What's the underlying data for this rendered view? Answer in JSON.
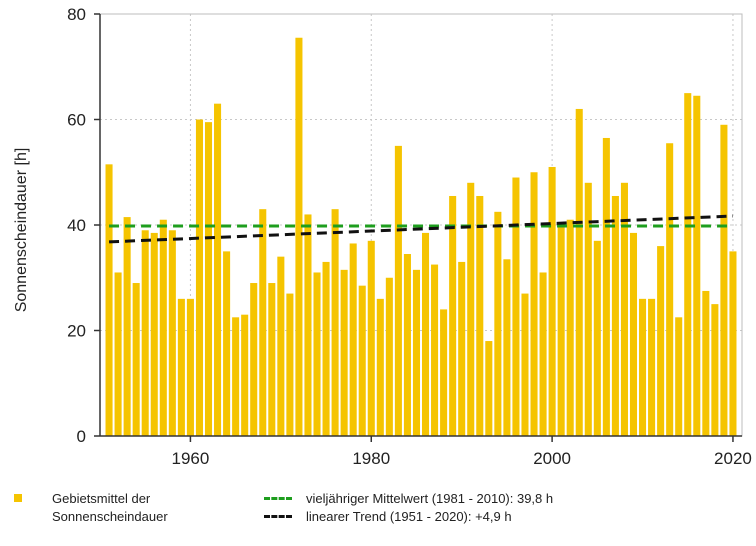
{
  "chart_data": {
    "type": "bar",
    "title": "",
    "xlabel": "",
    "ylabel": "Sonnenscheindauer [h]",
    "xlim": [
      1950,
      2021
    ],
    "ylim": [
      0,
      80
    ],
    "x_ticks": [
      "1960",
      "1980",
      "2000",
      "2020"
    ],
    "y_ticks": [
      "0",
      "20",
      "40",
      "60",
      "80"
    ],
    "grid": true,
    "x": [
      1951,
      1952,
      1953,
      1954,
      1955,
      1956,
      1957,
      1958,
      1959,
      1960,
      1961,
      1962,
      1963,
      1964,
      1965,
      1966,
      1967,
      1968,
      1969,
      1970,
      1971,
      1972,
      1973,
      1974,
      1975,
      1976,
      1977,
      1978,
      1979,
      1980,
      1981,
      1982,
      1983,
      1984,
      1985,
      1986,
      1987,
      1988,
      1989,
      1990,
      1991,
      1992,
      1993,
      1994,
      1995,
      1996,
      1997,
      1998,
      1999,
      2000,
      2001,
      2002,
      2003,
      2004,
      2005,
      2006,
      2007,
      2008,
      2009,
      2010,
      2011,
      2012,
      2013,
      2014,
      2015,
      2016,
      2017,
      2018,
      2019,
      2020
    ],
    "series": [
      {
        "name": "Gebietsmittel der Sonnenscheindauer",
        "color": "#f5c400",
        "values": [
          51.5,
          31,
          41.5,
          29,
          39,
          38.5,
          41,
          39,
          26,
          26,
          60,
          59.5,
          63,
          35,
          22.5,
          23,
          29,
          43,
          29,
          34,
          27,
          75.5,
          42,
          31,
          33,
          43,
          31.5,
          36.5,
          28.5,
          37,
          26,
          30,
          55,
          34.5,
          31.5,
          38.5,
          32.5,
          24,
          45.5,
          33,
          48,
          45.5,
          18,
          42.5,
          33.5,
          49,
          27,
          50,
          31,
          51,
          40,
          41,
          62,
          48,
          37,
          56.5,
          45.5,
          48,
          38.5,
          26,
          26,
          36,
          55.5,
          22.5,
          65,
          64.5,
          27.5,
          25,
          59,
          35
        ]
      }
    ],
    "lines": [
      {
        "name": "vieljähriger Mittelwert (1981 - 2010): 39,8 h",
        "color": "#1e9e1e",
        "x": [
          1951,
          2020
        ],
        "y": [
          39.8,
          39.8
        ]
      },
      {
        "name": "linearer Trend (1951 - 2020): +4,9 h",
        "color": "#111111",
        "x": [
          1951,
          2020
        ],
        "y": [
          36.8,
          41.7
        ]
      }
    ],
    "legend": {
      "bar_label_line1": "Gebietsmittel der",
      "bar_label_line2": "Sonnenscheindauer",
      "mean_label": "vieljähriger Mittelwert (1981 - 2010): 39,8 h",
      "trend_label": "linearer Trend (1951 - 2020): +4,9 h",
      "placement": "bottom"
    }
  }
}
